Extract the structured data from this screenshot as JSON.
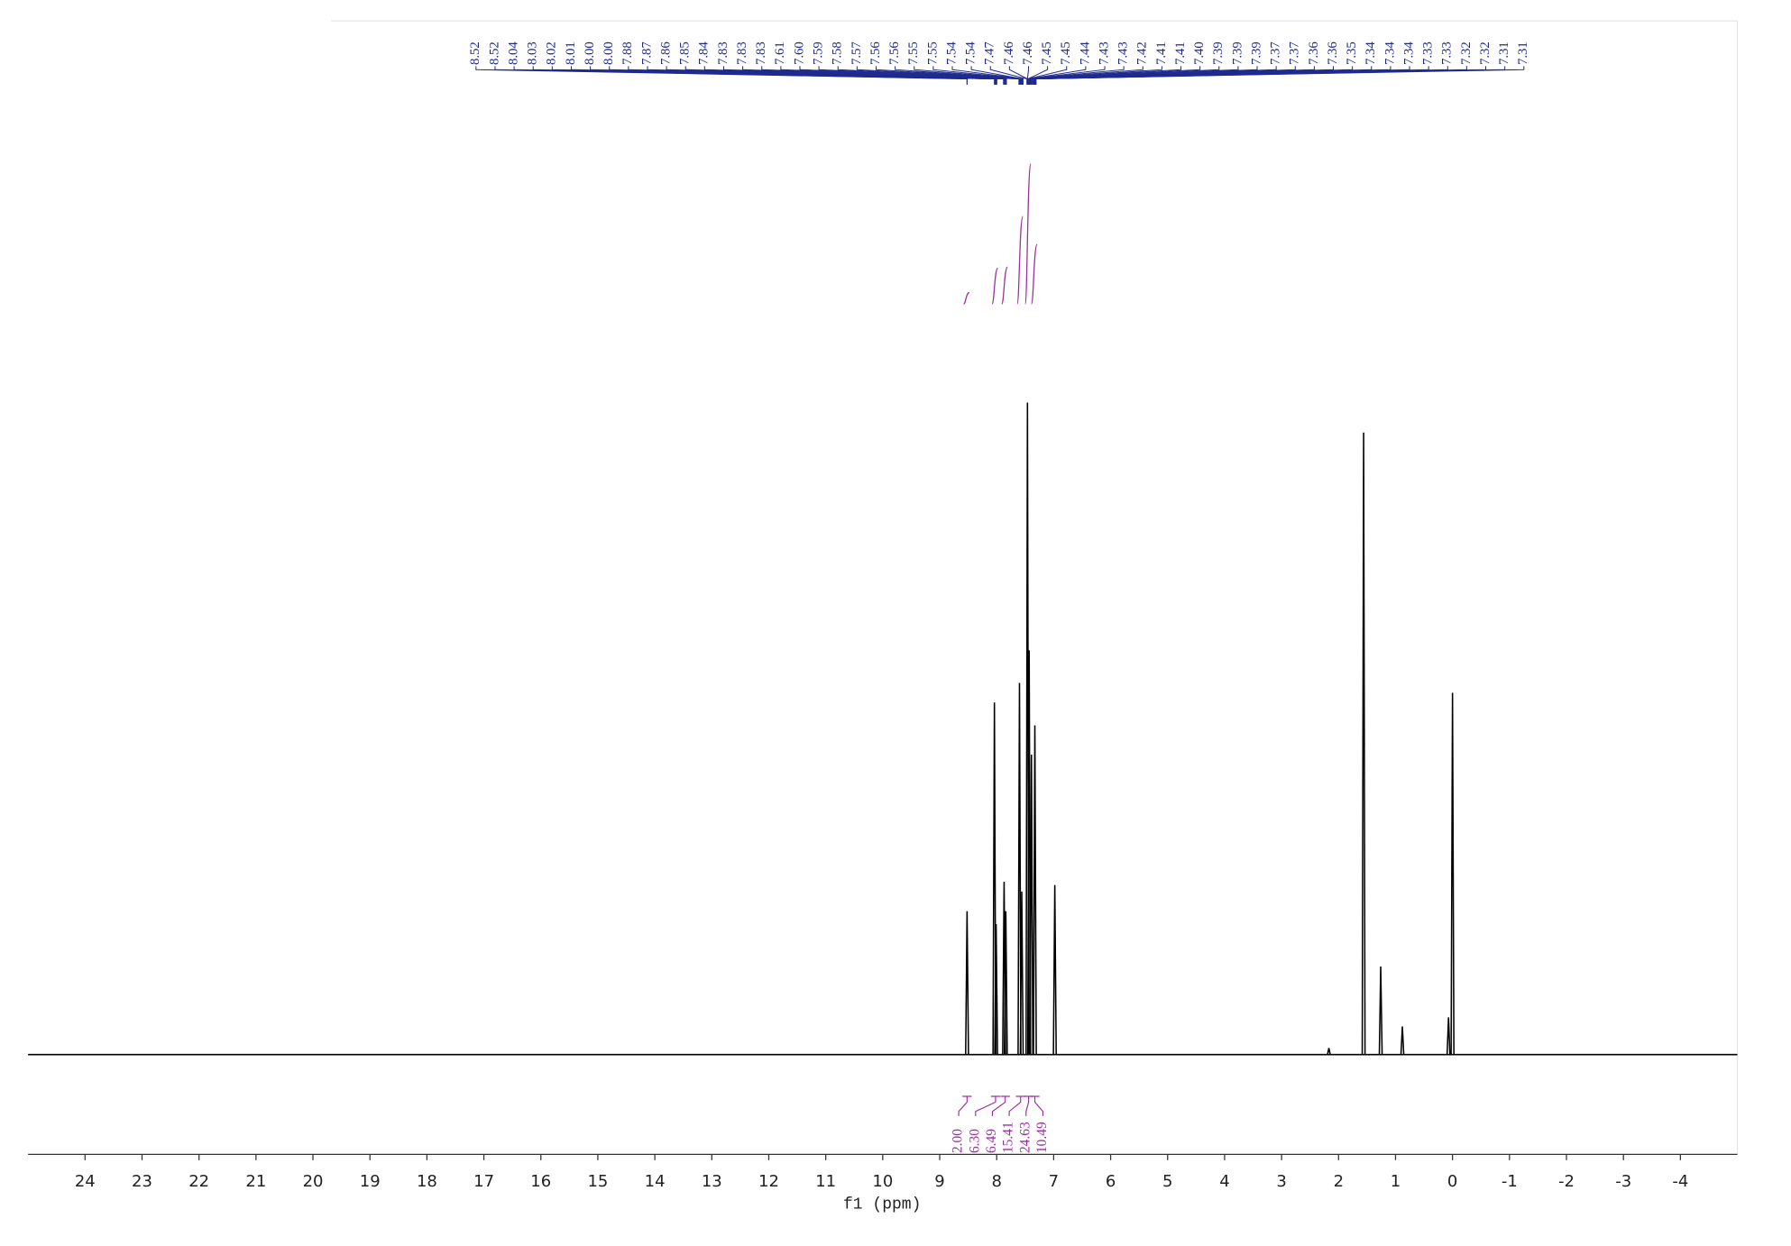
{
  "chart_data": {
    "type": "nmr",
    "xlabel": "f1 (ppm)",
    "xlim": [
      25,
      -5
    ],
    "xticks": [
      24,
      23,
      22,
      21,
      20,
      19,
      18,
      17,
      16,
      15,
      14,
      13,
      12,
      11,
      10,
      9,
      8,
      7,
      6,
      5,
      4,
      3,
      2,
      1,
      0,
      -1,
      -2,
      -3,
      -4
    ],
    "ylim": [
      0,
      100
    ],
    "color": "#000000",
    "x": [
      8.52,
      8.04,
      8.01,
      7.87,
      7.84,
      7.6,
      7.56,
      7.46,
      7.43,
      7.39,
      7.33,
      6.98,
      2.17,
      1.56,
      1.26,
      0.88,
      0.07,
      0.0
    ],
    "values": [
      22,
      54,
      20,
      26.5,
      22,
      57,
      25,
      100,
      62,
      46,
      50.5,
      26,
      1,
      95.4,
      13.5,
      4.3,
      5.7,
      55.5
    ],
    "peak_label_color": "#1f2b8f",
    "peak_labels": [
      "8.52",
      "8.52",
      "8.04",
      "8.03",
      "8.02",
      "8.01",
      "8.00",
      "8.00",
      "7.88",
      "7.87",
      "7.86",
      "7.85",
      "7.84",
      "7.83",
      "7.83",
      "7.83",
      "7.61",
      "7.60",
      "7.59",
      "7.58",
      "7.57",
      "7.56",
      "7.56",
      "7.55",
      "7.55",
      "7.54",
      "7.54",
      "7.47",
      "7.46",
      "7.46",
      "7.45",
      "7.45",
      "7.44",
      "7.43",
      "7.43",
      "7.42",
      "7.41",
      "7.41",
      "7.40",
      "7.39",
      "7.39",
      "7.39",
      "7.37",
      "7.37",
      "7.36",
      "7.36",
      "7.35",
      "7.34",
      "7.34",
      "7.34",
      "7.33",
      "7.33",
      "7.32",
      "7.32",
      "7.31",
      "7.31"
    ],
    "integral_color": "#9b30a0",
    "integrals": [
      {
        "value": 2,
        "label": "2.00",
        "ppm": 8.52
      },
      {
        "value": 6.3,
        "label": "6.30",
        "ppm": 8.02
      },
      {
        "value": 6.49,
        "label": "6.49",
        "ppm": 7.85
      },
      {
        "value": 15.41,
        "label": "15.41",
        "ppm": 7.58
      },
      {
        "value": 24.63,
        "label": "24.63",
        "ppm": 7.44
      },
      {
        "value": 10.49,
        "label": "10.49",
        "ppm": 7.33
      }
    ]
  }
}
